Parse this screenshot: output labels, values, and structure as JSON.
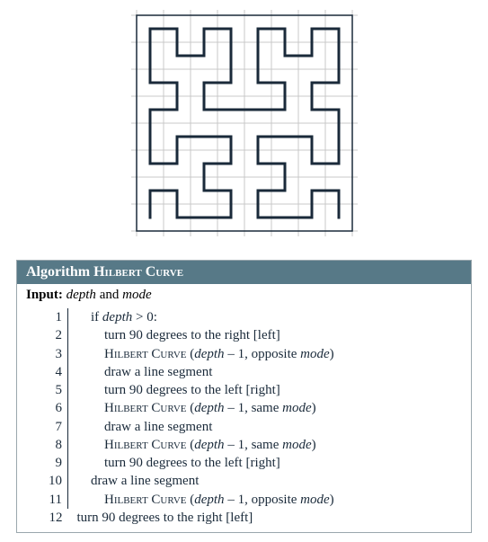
{
  "figure": {
    "type": "hilbert-curve",
    "depth": 3,
    "grid_color": "#c9c9c9",
    "curve_color": "#1a2a3a",
    "border_color": "#1a2a3a",
    "background": "#ffffff",
    "stroke_width": 3,
    "grid_stroke_width": 1,
    "svg_size": 275,
    "cell": 30,
    "inset": 22
  },
  "algo": {
    "header_bg": "#577987",
    "title_prefix": "Algorithm ",
    "title_name": "Hilbert Curve",
    "input_label": "Input:",
    "input_text_a": "depth",
    "input_text_b": " and ",
    "input_text_c": "mode",
    "lines": [
      {
        "n": "1",
        "indent": 1,
        "segs": [
          {
            "t": "if "
          },
          {
            "t": "depth",
            "i": true
          },
          {
            "t": " > 0:"
          }
        ]
      },
      {
        "n": "2",
        "indent": 2,
        "segs": [
          {
            "t": "turn 90 degrees to the right [left]"
          }
        ]
      },
      {
        "n": "3",
        "indent": 2,
        "segs": [
          {
            "t": "Hilbert Curve",
            "sc": true
          },
          {
            "t": " ("
          },
          {
            "t": "depth",
            "i": true
          },
          {
            "t": " – 1, opposite "
          },
          {
            "t": "mode",
            "i": true
          },
          {
            "t": ")"
          }
        ]
      },
      {
        "n": "4",
        "indent": 2,
        "segs": [
          {
            "t": "draw a line segment"
          }
        ]
      },
      {
        "n": "5",
        "indent": 2,
        "segs": [
          {
            "t": "turn 90 degrees to the left [right]"
          }
        ]
      },
      {
        "n": "6",
        "indent": 2,
        "segs": [
          {
            "t": "Hilbert Curve",
            "sc": true
          },
          {
            "t": " ("
          },
          {
            "t": "depth",
            "i": true
          },
          {
            "t": " – 1, same "
          },
          {
            "t": "mode",
            "i": true
          },
          {
            "t": ")"
          }
        ]
      },
      {
        "n": "7",
        "indent": 2,
        "segs": [
          {
            "t": "draw a line segment"
          }
        ]
      },
      {
        "n": "8",
        "indent": 2,
        "segs": [
          {
            "t": "Hilbert Curve",
            "sc": true
          },
          {
            "t": " ("
          },
          {
            "t": "depth",
            "i": true
          },
          {
            "t": " – 1, same "
          },
          {
            "t": "mode",
            "i": true
          },
          {
            "t": ")"
          }
        ]
      },
      {
        "n": "9",
        "indent": 2,
        "segs": [
          {
            "t": "turn 90 degrees to the left [right]"
          }
        ]
      },
      {
        "n": "10",
        "indent": 1,
        "segs": [
          {
            "t": "draw a line segment"
          }
        ]
      },
      {
        "n": "11",
        "indent": 2,
        "segs": [
          {
            "t": "Hilbert Curve",
            "sc": true
          },
          {
            "t": " ("
          },
          {
            "t": "depth",
            "i": true
          },
          {
            "t": " – 1, opposite "
          },
          {
            "t": "mode",
            "i": true
          },
          {
            "t": ")"
          }
        ]
      },
      {
        "n": "12",
        "indent": 0,
        "segs": [
          {
            "t": "turn 90 degrees to the right [left]"
          }
        ],
        "no_border": true
      }
    ]
  }
}
